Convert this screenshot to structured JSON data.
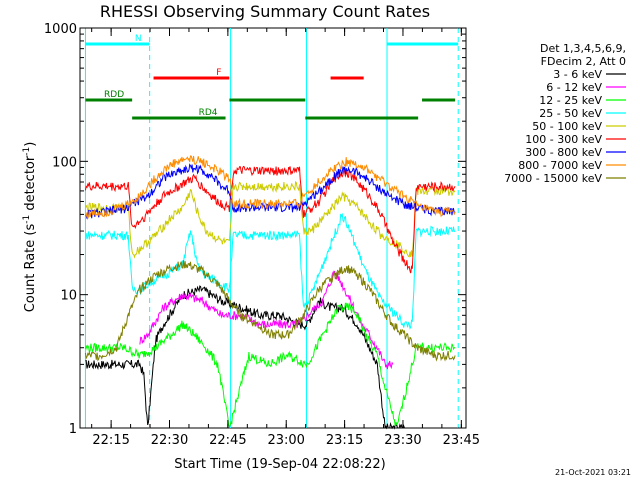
{
  "chart_data": {
    "type": "line",
    "title": "RHESSI Observing Summary Count Rates",
    "xlabel": "Start Time (19-Sep-04 22:08:22)",
    "ylabel_main": "Count Rate (s",
    "ylabel_sup1": "-1",
    "ylabel_mid": " detector",
    "ylabel_sup2": "-1",
    "ylabel_end": ")",
    "yscale": "log",
    "ylim": [
      1,
      1000
    ],
    "xlim_minutes": [
      -1.4,
      97.8
    ],
    "x_ticks": [
      {
        "label": "22:15",
        "minute": 6.6
      },
      {
        "label": "22:30",
        "minute": 21.6
      },
      {
        "label": "22:45",
        "minute": 36.6
      },
      {
        "label": "23:00",
        "minute": 51.6
      },
      {
        "label": "23:15",
        "minute": 66.6
      },
      {
        "label": "23:30",
        "minute": 81.6
      },
      {
        "label": "23:45",
        "minute": 96.6
      }
    ],
    "y_ticks": [
      {
        "label": "1",
        "value": 1
      },
      {
        "label": "10",
        "value": 10
      },
      {
        "label": "100",
        "value": 100
      },
      {
        "label": "1000",
        "value": 1000
      }
    ],
    "legend_header": [
      "Det 1,3,4,5,6,9,",
      "FDecim 2, Att 0"
    ],
    "timestamp": "21-Oct-2021 03:21",
    "series": [
      {
        "name": "3 - 6 keV",
        "color": "#000000",
        "points": [
          [
            0,
            3
          ],
          [
            14,
            3
          ],
          [
            15,
            2.5
          ],
          [
            16,
            1
          ],
          [
            18,
            4.5
          ],
          [
            20,
            6
          ],
          [
            25,
            10
          ],
          [
            30,
            11
          ],
          [
            35,
            9
          ],
          [
            40,
            8
          ],
          [
            45,
            7
          ],
          [
            50,
            7
          ],
          [
            55,
            6
          ],
          [
            57,
            6
          ],
          [
            60,
            9
          ],
          [
            63,
            8
          ],
          [
            66,
            8
          ],
          [
            70,
            6
          ],
          [
            73,
            4
          ],
          [
            75,
            3
          ],
          [
            77,
            1
          ],
          [
            80,
            1
          ],
          [
            82,
            1
          ]
        ]
      },
      {
        "name": "6 - 12 keV",
        "color": "#ff00ff",
        "points": [
          [
            14,
            4.5
          ],
          [
            16,
            5
          ],
          [
            20,
            8
          ],
          [
            25,
            10
          ],
          [
            30,
            9
          ],
          [
            35,
            7
          ],
          [
            40,
            7
          ],
          [
            45,
            6
          ],
          [
            50,
            6
          ],
          [
            55,
            6
          ],
          [
            57,
            7
          ],
          [
            61,
            9
          ],
          [
            64,
            15
          ],
          [
            66,
            12
          ],
          [
            69,
            8
          ],
          [
            71,
            6
          ],
          [
            73,
            5
          ],
          [
            75,
            4
          ],
          [
            77,
            3
          ],
          [
            79,
            3
          ]
        ]
      },
      {
        "name": "12 - 25 keV",
        "color": "#00ff00",
        "points": [
          [
            0,
            4
          ],
          [
            6,
            4
          ],
          [
            10,
            4
          ],
          [
            14,
            3.5
          ],
          [
            18,
            4
          ],
          [
            22,
            5
          ],
          [
            25,
            6
          ],
          [
            28,
            5
          ],
          [
            31,
            4
          ],
          [
            34,
            3
          ],
          [
            37,
            1
          ],
          [
            42,
            3.5
          ],
          [
            47,
            3
          ],
          [
            52,
            3.5
          ],
          [
            57,
            3
          ],
          [
            61,
            5
          ],
          [
            65,
            8
          ],
          [
            68,
            8
          ],
          [
            70,
            7
          ],
          [
            72,
            5
          ],
          [
            75,
            3.5
          ],
          [
            77,
            2
          ],
          [
            80,
            1
          ],
          [
            85,
            4
          ],
          [
            89,
            4
          ],
          [
            95,
            4
          ]
        ]
      },
      {
        "name": "25 - 50 keV",
        "color": "#00ffff",
        "points": [
          [
            0,
            28
          ],
          [
            6,
            28
          ],
          [
            11,
            28
          ],
          [
            12,
            11
          ],
          [
            14,
            11
          ],
          [
            18,
            13
          ],
          [
            22,
            15
          ],
          [
            25,
            17
          ],
          [
            27,
            30
          ],
          [
            29,
            16
          ],
          [
            31,
            14
          ],
          [
            35,
            12
          ],
          [
            37,
            11
          ],
          [
            38,
            28
          ],
          [
            42,
            28
          ],
          [
            48,
            28
          ],
          [
            55,
            28
          ],
          [
            56,
            8
          ],
          [
            58,
            10
          ],
          [
            62,
            20
          ],
          [
            66,
            40
          ],
          [
            68,
            30
          ],
          [
            72,
            15
          ],
          [
            76,
            9
          ],
          [
            78,
            8
          ],
          [
            80,
            7
          ],
          [
            82,
            6
          ],
          [
            84,
            6
          ],
          [
            85,
            30
          ],
          [
            90,
            30
          ],
          [
            95,
            30
          ]
        ]
      },
      {
        "name": "50 - 100 keV",
        "color": "#cccc00",
        "points": [
          [
            0,
            45
          ],
          [
            6,
            45
          ],
          [
            11,
            45
          ],
          [
            12,
            20
          ],
          [
            14,
            22
          ],
          [
            18,
            28
          ],
          [
            22,
            38
          ],
          [
            25,
            45
          ],
          [
            27,
            60
          ],
          [
            29,
            40
          ],
          [
            31,
            30
          ],
          [
            35,
            25
          ],
          [
            37,
            24
          ],
          [
            38,
            65
          ],
          [
            42,
            65
          ],
          [
            48,
            65
          ],
          [
            55,
            65
          ],
          [
            56,
            30
          ],
          [
            58,
            30
          ],
          [
            62,
            40
          ],
          [
            66,
            55
          ],
          [
            70,
            45
          ],
          [
            73,
            35
          ],
          [
            76,
            28
          ],
          [
            79,
            25
          ],
          [
            82,
            22
          ],
          [
            84,
            20
          ],
          [
            85,
            60
          ],
          [
            90,
            60
          ],
          [
            95,
            60
          ]
        ]
      },
      {
        "name": "100 - 300 keV",
        "color": "#ff0000",
        "points": [
          [
            0,
            65
          ],
          [
            6,
            65
          ],
          [
            11,
            65
          ],
          [
            12,
            32
          ],
          [
            15,
            38
          ],
          [
            20,
            55
          ],
          [
            25,
            68
          ],
          [
            28,
            75
          ],
          [
            31,
            60
          ],
          [
            34,
            50
          ],
          [
            37,
            45
          ],
          [
            38,
            85
          ],
          [
            42,
            85
          ],
          [
            48,
            85
          ],
          [
            55,
            85
          ],
          [
            56,
            40
          ],
          [
            60,
            50
          ],
          [
            64,
            75
          ],
          [
            67,
            85
          ],
          [
            70,
            70
          ],
          [
            73,
            55
          ],
          [
            76,
            40
          ],
          [
            79,
            25
          ],
          [
            82,
            18
          ],
          [
            84,
            15
          ],
          [
            85,
            65
          ],
          [
            90,
            65
          ],
          [
            95,
            65
          ]
        ]
      },
      {
        "name": "300 - 800 keV",
        "color": "#0000ff",
        "points": [
          [
            0,
            40
          ],
          [
            6,
            42
          ],
          [
            11,
            45
          ],
          [
            12,
            48
          ],
          [
            16,
            55
          ],
          [
            20,
            75
          ],
          [
            24,
            85
          ],
          [
            28,
            90
          ],
          [
            32,
            80
          ],
          [
            35,
            65
          ],
          [
            37,
            60
          ],
          [
            38,
            45
          ],
          [
            42,
            45
          ],
          [
            48,
            45
          ],
          [
            55,
            45
          ],
          [
            56,
            48
          ],
          [
            60,
            60
          ],
          [
            64,
            78
          ],
          [
            67,
            88
          ],
          [
            70,
            82
          ],
          [
            74,
            68
          ],
          [
            78,
            55
          ],
          [
            82,
            48
          ],
          [
            86,
            45
          ],
          [
            90,
            42
          ],
          [
            95,
            42
          ]
        ]
      },
      {
        "name": "800 - 7000 keV",
        "color": "#ff8c00",
        "points": [
          [
            0,
            40
          ],
          [
            6,
            42
          ],
          [
            11,
            48
          ],
          [
            14,
            55
          ],
          [
            18,
            75
          ],
          [
            22,
            95
          ],
          [
            26,
            105
          ],
          [
            30,
            100
          ],
          [
            34,
            85
          ],
          [
            37,
            75
          ],
          [
            38,
            48
          ],
          [
            42,
            48
          ],
          [
            48,
            48
          ],
          [
            55,
            48
          ],
          [
            56,
            55
          ],
          [
            60,
            70
          ],
          [
            64,
            90
          ],
          [
            67,
            100
          ],
          [
            70,
            95
          ],
          [
            74,
            80
          ],
          [
            78,
            65
          ],
          [
            82,
            55
          ],
          [
            86,
            45
          ],
          [
            90,
            42
          ],
          [
            95,
            42
          ]
        ]
      },
      {
        "name": "7000 - 15000 keV",
        "color": "#7f7f00",
        "points": [
          [
            0,
            3.5
          ],
          [
            4,
            3.5
          ],
          [
            8,
            4
          ],
          [
            11,
            7
          ],
          [
            14,
            11
          ],
          [
            18,
            14
          ],
          [
            22,
            16
          ],
          [
            26,
            17
          ],
          [
            30,
            15
          ],
          [
            34,
            12
          ],
          [
            37,
            9
          ],
          [
            40,
            7
          ],
          [
            44,
            6
          ],
          [
            48,
            5
          ],
          [
            52,
            5
          ],
          [
            56,
            7
          ],
          [
            60,
            11
          ],
          [
            64,
            14
          ],
          [
            67,
            16
          ],
          [
            70,
            14
          ],
          [
            73,
            11
          ],
          [
            76,
            8
          ],
          [
            79,
            6
          ],
          [
            82,
            5
          ],
          [
            85,
            4
          ],
          [
            90,
            3.5
          ],
          [
            95,
            3.5
          ]
        ]
      }
    ],
    "flags": [
      {
        "name": "N",
        "color": "#00ffff",
        "level": 0.93,
        "spans": [
          [
            0,
            16.5
          ],
          [
            77.5,
            95.8
          ]
        ]
      },
      {
        "name": "F",
        "color": "#ff0000",
        "level": 0.845,
        "spans": [
          [
            17.5,
            37
          ],
          [
            63,
            71.5
          ]
        ]
      },
      {
        "name": "RDD",
        "color": "#008000",
        "level": 0.79,
        "spans": [
          [
            0,
            12
          ],
          [
            37,
            56.5
          ],
          [
            86.5,
            95
          ]
        ]
      },
      {
        "name": "RD4",
        "color": "#008000",
        "level": 0.745,
        "spans": [
          [
            12,
            36
          ],
          [
            56.5,
            85.5
          ]
        ]
      }
    ],
    "vlines": [
      {
        "color": "#00ffff",
        "minute": 0,
        "style": "solid"
      },
      {
        "color": "#00ffff",
        "minute": 16.5,
        "style": "dashed"
      },
      {
        "color": "#00ffff",
        "minute": 37.3,
        "style": "solid"
      },
      {
        "color": "#00ffff",
        "minute": 56.8,
        "style": "solid"
      },
      {
        "color": "#00ffff",
        "minute": 77.5,
        "style": "solid"
      },
      {
        "color": "#00ffff",
        "minute": 95.8,
        "style": "dashed"
      }
    ]
  }
}
